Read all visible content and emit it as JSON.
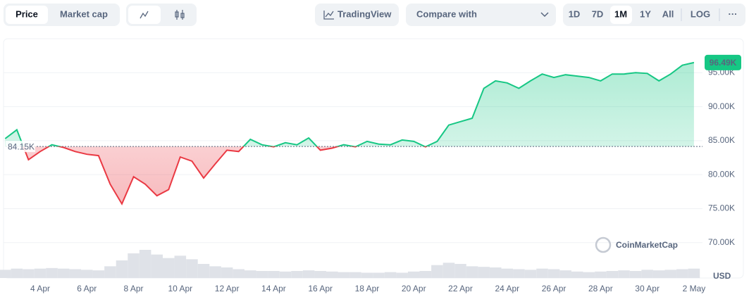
{
  "toolbar": {
    "price": "Price",
    "market_cap": "Market cap",
    "tradingview": "TradingView",
    "compare": "Compare with",
    "ranges": [
      "1D",
      "7D",
      "1M",
      "1Y",
      "All"
    ],
    "log": "LOG",
    "more": "···"
  },
  "chart_data": {
    "type": "line",
    "categories": [
      null,
      null,
      null,
      "4 Apr",
      null,
      null,
      null,
      "6 Apr",
      null,
      null,
      null,
      "8 Apr",
      null,
      null,
      null,
      "10 Apr",
      null,
      null,
      null,
      "12 Apr",
      null,
      null,
      null,
      "14 Apr",
      null,
      null,
      null,
      "16 Apr",
      null,
      null,
      null,
      "18 Apr",
      null,
      null,
      null,
      "20 Apr",
      null,
      null,
      null,
      "22 Apr",
      null,
      null,
      null,
      "24 Apr",
      null,
      null,
      null,
      "26 Apr",
      null,
      null,
      null,
      "28 Apr",
      null,
      null,
      null,
      "30 Apr",
      null,
      null,
      null,
      "2 May"
    ],
    "values": [
      85.3,
      86.6,
      82.2,
      83.4,
      84.4,
      84.0,
      83.4,
      83.0,
      82.8,
      78.6,
      75.7,
      79.7,
      78.6,
      76.9,
      77.8,
      82.6,
      82.0,
      79.5,
      81.6,
      83.6,
      83.4,
      85.2,
      84.4,
      84.1,
      84.7,
      84.4,
      85.4,
      83.6,
      83.9,
      84.4,
      84.1,
      84.9,
      84.5,
      84.4,
      85.1,
      84.9,
      84.1,
      84.9,
      87.3,
      87.8,
      88.3,
      92.7,
      93.8,
      93.5,
      92.7,
      93.8,
      94.8,
      94.3,
      94.7,
      94.5,
      94.3,
      93.8,
      94.8,
      94.8,
      95.0,
      94.9,
      93.8,
      94.8,
      96.1,
      96.49
    ],
    "volume": [
      14,
      16,
      15,
      16,
      17,
      16,
      15,
      14,
      13,
      20,
      30,
      42,
      48,
      40,
      34,
      38,
      32,
      24,
      20,
      18,
      15,
      13,
      12,
      12,
      11,
      12,
      13,
      12,
      11,
      10,
      10,
      9,
      9,
      10,
      9,
      11,
      12,
      22,
      26,
      24,
      20,
      19,
      18,
      16,
      15,
      14,
      16,
      15,
      13,
      11,
      10,
      11,
      12,
      13,
      12,
      14,
      13,
      14,
      15,
      16
    ],
    "volume_ylim": [
      0,
      60
    ],
    "baseline": {
      "value": 84.15,
      "label": "84.15K"
    },
    "current": {
      "value": 96.49,
      "label": "96.49K"
    },
    "ylim": [
      64.8,
      100
    ],
    "yticks": [
      {
        "value": 70,
        "label": "70.00K"
      },
      {
        "value": 75,
        "label": "75.00K"
      },
      {
        "value": 80,
        "label": "80.00K"
      },
      {
        "value": 85,
        "label": "85.00K"
      },
      {
        "value": 90,
        "label": "90.00K"
      },
      {
        "value": 95,
        "label": "95.00K"
      }
    ],
    "currency_label": "USD",
    "watermark": "CoinMarketCap",
    "up_color": "#16c784",
    "down_color": "#ea3943",
    "volume_color": "#dfe2e8",
    "grid": true
  }
}
